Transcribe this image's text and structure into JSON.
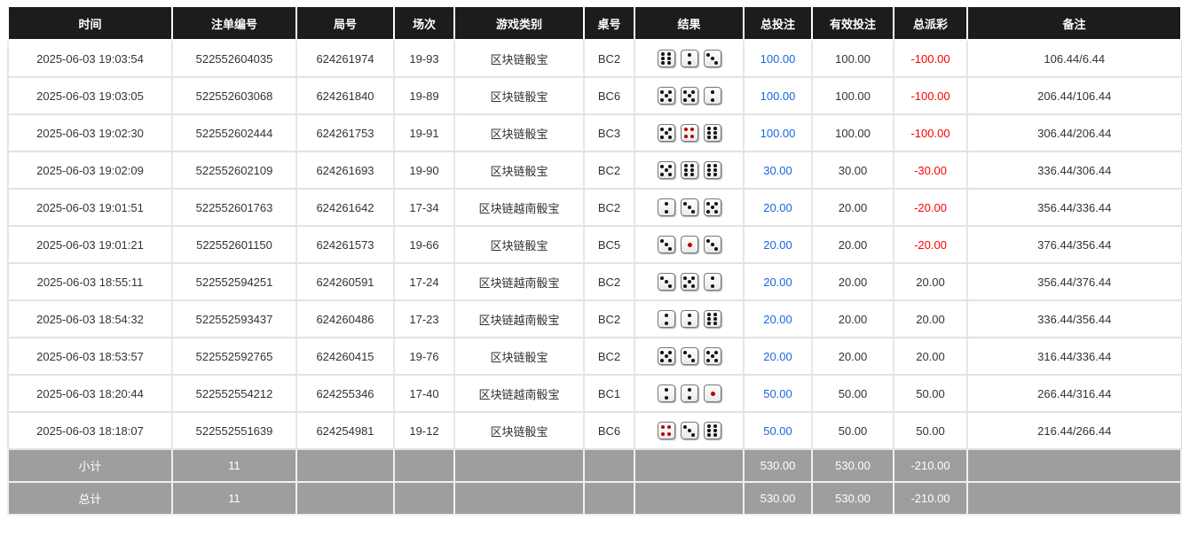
{
  "columns": [
    "时间",
    "注单编号",
    "局号",
    "场次",
    "游戏类别",
    "桌号",
    "结果",
    "总投注",
    "有效投注",
    "总派彩",
    "备注"
  ],
  "rows": [
    {
      "time": "2025-06-03 19:03:54",
      "bet_id": "522552604035",
      "round": "624261974",
      "session": "19-93",
      "game": "区块链骰宝",
      "table": "BC2",
      "dice": [
        6,
        2,
        3
      ],
      "total_bet": "100.00",
      "valid_bet": "100.00",
      "payout": "-100.00",
      "note": "106.44/6.44"
    },
    {
      "time": "2025-06-03 19:03:05",
      "bet_id": "522552603068",
      "round": "624261840",
      "session": "19-89",
      "game": "区块链骰宝",
      "table": "BC6",
      "dice": [
        5,
        5,
        2
      ],
      "total_bet": "100.00",
      "valid_bet": "100.00",
      "payout": "-100.00",
      "note": "206.44/106.44"
    },
    {
      "time": "2025-06-03 19:02:30",
      "bet_id": "522552602444",
      "round": "624261753",
      "session": "19-91",
      "game": "区块链骰宝",
      "table": "BC3",
      "dice": [
        5,
        4,
        6
      ],
      "total_bet": "100.00",
      "valid_bet": "100.00",
      "payout": "-100.00",
      "note": "306.44/206.44"
    },
    {
      "time": "2025-06-03 19:02:09",
      "bet_id": "522552602109",
      "round": "624261693",
      "session": "19-90",
      "game": "区块链骰宝",
      "table": "BC2",
      "dice": [
        5,
        6,
        6
      ],
      "total_bet": "30.00",
      "valid_bet": "30.00",
      "payout": "-30.00",
      "note": "336.44/306.44"
    },
    {
      "time": "2025-06-03 19:01:51",
      "bet_id": "522552601763",
      "round": "624261642",
      "session": "17-34",
      "game": "区块链越南骰宝",
      "table": "BC2",
      "dice": [
        2,
        3,
        5
      ],
      "total_bet": "20.00",
      "valid_bet": "20.00",
      "payout": "-20.00",
      "note": "356.44/336.44"
    },
    {
      "time": "2025-06-03 19:01:21",
      "bet_id": "522552601150",
      "round": "624261573",
      "session": "19-66",
      "game": "区块链骰宝",
      "table": "BC5",
      "dice": [
        3,
        1,
        3
      ],
      "total_bet": "20.00",
      "valid_bet": "20.00",
      "payout": "-20.00",
      "note": "376.44/356.44"
    },
    {
      "time": "2025-06-03 18:55:11",
      "bet_id": "522552594251",
      "round": "624260591",
      "session": "17-24",
      "game": "区块链越南骰宝",
      "table": "BC2",
      "dice": [
        3,
        5,
        2
      ],
      "total_bet": "20.00",
      "valid_bet": "20.00",
      "payout": "20.00",
      "note": "356.44/376.44"
    },
    {
      "time": "2025-06-03 18:54:32",
      "bet_id": "522552593437",
      "round": "624260486",
      "session": "17-23",
      "game": "区块链越南骰宝",
      "table": "BC2",
      "dice": [
        2,
        2,
        6
      ],
      "total_bet": "20.00",
      "valid_bet": "20.00",
      "payout": "20.00",
      "note": "336.44/356.44"
    },
    {
      "time": "2025-06-03 18:53:57",
      "bet_id": "522552592765",
      "round": "624260415",
      "session": "19-76",
      "game": "区块链骰宝",
      "table": "BC2",
      "dice": [
        5,
        3,
        5
      ],
      "total_bet": "20.00",
      "valid_bet": "20.00",
      "payout": "20.00",
      "note": "316.44/336.44"
    },
    {
      "time": "2025-06-03 18:20:44",
      "bet_id": "522552554212",
      "round": "624255346",
      "session": "17-40",
      "game": "区块链越南骰宝",
      "table": "BC1",
      "dice": [
        2,
        2,
        1
      ],
      "total_bet": "50.00",
      "valid_bet": "50.00",
      "payout": "50.00",
      "note": "266.44/316.44"
    },
    {
      "time": "2025-06-03 18:18:07",
      "bet_id": "522552551639",
      "round": "624254981",
      "session": "19-12",
      "game": "区块链骰宝",
      "table": "BC6",
      "dice": [
        4,
        3,
        6
      ],
      "total_bet": "50.00",
      "valid_bet": "50.00",
      "payout": "50.00",
      "note": "216.44/266.44"
    }
  ],
  "subtotal": {
    "label": "小计",
    "count": "11",
    "total_bet": "530.00",
    "valid_bet": "530.00",
    "payout": "-210.00"
  },
  "grand_total": {
    "label": "总计",
    "count": "11",
    "total_bet": "530.00",
    "valid_bet": "530.00",
    "payout": "-210.00"
  },
  "colors": {
    "header_bg": "#1c1c1c",
    "bet_blue": "#1a66e0",
    "loss_red": "#ff0000",
    "pip_red": "#b00000",
    "footer_bg": "#9e9e9e"
  }
}
